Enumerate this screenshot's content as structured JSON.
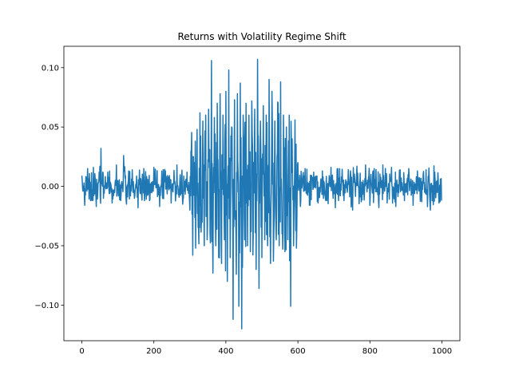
{
  "chart_data": {
    "type": "line",
    "title": "Returns with Volatility Regime Shift",
    "xlabel": "",
    "ylabel": "",
    "xlim": [
      -50,
      1050
    ],
    "ylim": [
      -0.13,
      0.118
    ],
    "xticks": [
      0,
      200,
      400,
      600,
      800,
      1000
    ],
    "xtick_labels": [
      "0",
      "200",
      "400",
      "600",
      "800",
      "1000"
    ],
    "yticks": [
      -0.1,
      -0.05,
      0.0,
      0.05,
      0.1
    ],
    "ytick_labels": [
      "−0.10",
      "−0.05",
      "0.00",
      "0.05",
      "0.10"
    ],
    "grid": false,
    "legend": "none",
    "series": [
      {
        "color": "#1f77b4",
        "regimes": [
          {
            "x_start": 0,
            "x_end": 300,
            "std_dev": 0.01
          },
          {
            "x_start": 300,
            "x_end": 600,
            "std_dev": 0.04
          },
          {
            "x_start": 600,
            "x_end": 999,
            "std_dev": 0.01
          }
        ],
        "x": [
          0,
          8,
          16,
          24,
          32,
          40,
          48,
          53,
          60,
          72,
          84,
          96,
          108,
          116,
          124,
          140,
          156,
          172,
          188,
          200,
          216,
          232,
          248,
          264,
          280,
          292,
          300,
          304,
          308,
          312,
          316,
          320,
          324,
          328,
          332,
          336,
          340,
          344,
          348,
          352,
          356,
          360,
          364,
          368,
          372,
          376,
          380,
          384,
          388,
          392,
          396,
          400,
          404,
          408,
          412,
          416,
          420,
          424,
          428,
          432,
          436,
          440,
          444,
          448,
          452,
          456,
          460,
          464,
          468,
          472,
          476,
          480,
          484,
          488,
          492,
          496,
          500,
          504,
          508,
          512,
          516,
          520,
          524,
          528,
          532,
          536,
          540,
          544,
          548,
          552,
          556,
          560,
          564,
          568,
          572,
          576,
          580,
          584,
          588,
          592,
          596,
          600,
          608,
          620,
          632,
          644,
          656,
          668,
          680,
          692,
          704,
          716,
          728,
          740,
          752,
          764,
          776,
          788,
          800,
          812,
          824,
          836,
          848,
          860,
          872,
          884,
          896,
          908,
          920,
          932,
          944,
          956,
          968,
          980,
          992,
          999
        ],
        "y": [
          0.009,
          -0.016,
          0.015,
          -0.012,
          0.016,
          -0.017,
          0.012,
          0.032,
          -0.01,
          0.012,
          -0.014,
          0.018,
          -0.012,
          0.026,
          -0.015,
          0.014,
          -0.018,
          0.015,
          -0.012,
          0.016,
          -0.017,
          0.013,
          -0.014,
          0.018,
          -0.015,
          0.012,
          -0.02,
          0.03,
          -0.058,
          0.02,
          -0.052,
          0.048,
          -0.035,
          0.062,
          -0.03,
          0.055,
          -0.05,
          0.06,
          -0.045,
          0.065,
          -0.04,
          0.106,
          -0.073,
          0.058,
          -0.05,
          0.07,
          -0.06,
          0.078,
          -0.065,
          0.06,
          -0.045,
          0.08,
          -0.08,
          0.098,
          -0.06,
          0.05,
          -0.112,
          0.073,
          -0.04,
          0.078,
          -0.101,
          0.087,
          -0.12,
          0.06,
          -0.045,
          0.07,
          -0.05,
          0.06,
          -0.055,
          0.072,
          -0.04,
          0.065,
          -0.07,
          0.107,
          -0.086,
          0.055,
          -0.06,
          0.068,
          -0.045,
          0.06,
          -0.05,
          0.09,
          -0.065,
          0.08,
          -0.063,
          0.055,
          -0.045,
          0.071,
          -0.05,
          0.088,
          -0.04,
          0.06,
          -0.055,
          0.05,
          -0.045,
          0.06,
          -0.101,
          0.04,
          -0.05,
          0.056,
          -0.052,
          0.02,
          -0.012,
          0.015,
          -0.016,
          0.012,
          -0.014,
          0.013,
          -0.012,
          0.016,
          -0.018,
          0.015,
          -0.012,
          0.014,
          -0.02,
          0.017,
          -0.013,
          0.018,
          -0.016,
          0.015,
          -0.012,
          0.018,
          -0.014,
          0.016,
          -0.017,
          0.014,
          -0.012,
          0.015,
          -0.016,
          0.013,
          -0.013,
          0.014,
          -0.02,
          0.012,
          -0.014,
          -0.012
        ]
      }
    ]
  }
}
